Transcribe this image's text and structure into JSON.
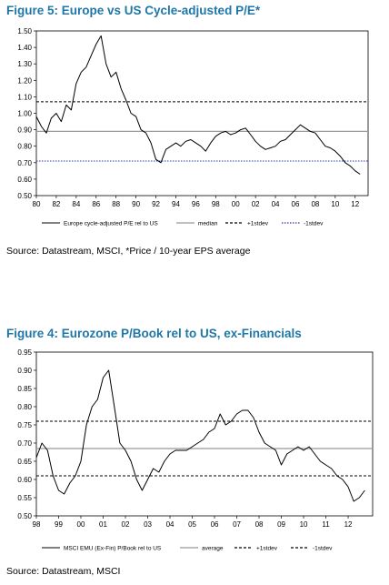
{
  "chart_data": [
    {
      "type": "line",
      "title": "Figure 5: Europe vs US Cycle-adjusted P/E*",
      "source": "Source: Datastream, MSCI, *Price / 10-year EPS average",
      "ylim": [
        0.5,
        1.5
      ],
      "yticks": [
        "0.50",
        "0.60",
        "0.70",
        "0.80",
        "0.90",
        "1.00",
        "1.10",
        "1.20",
        "1.30",
        "1.40",
        "1.50"
      ],
      "xlim": [
        1980,
        2013.3
      ],
      "xtick_values": [
        1980,
        1982,
        1984,
        1986,
        1988,
        1990,
        1992,
        1994,
        1996,
        1998,
        2000,
        2002,
        2004,
        2006,
        2008,
        2010,
        2012
      ],
      "xticks": [
        "80",
        "82",
        "84",
        "86",
        "88",
        "90",
        "92",
        "94",
        "96",
        "98",
        "00",
        "02",
        "04",
        "06",
        "08",
        "10",
        "12"
      ],
      "grid": false,
      "legend_position": "bottom",
      "series": [
        {
          "name": "Europe cycle-adjusted P/E rel to US",
          "style": "solid",
          "color": "#000000",
          "x": [
            1980,
            1980.5,
            1981,
            1981.5,
            1982,
            1982.5,
            1983,
            1983.5,
            1984,
            1984.5,
            1985,
            1985.5,
            1986,
            1986.5,
            1987,
            1987.5,
            1988,
            1988.5,
            1989,
            1989.5,
            1990,
            1990.5,
            1991,
            1991.5,
            1992,
            1992.5,
            1993,
            1993.5,
            1994,
            1994.5,
            1995,
            1995.5,
            1996,
            1996.5,
            1997,
            1997.5,
            1998,
            1998.5,
            1999,
            1999.5,
            2000,
            2000.5,
            2001,
            2001.5,
            2002,
            2002.5,
            2003,
            2003.5,
            2004,
            2004.5,
            2005,
            2005.5,
            2006,
            2006.5,
            2007,
            2007.5,
            2008,
            2008.5,
            2009,
            2009.5,
            2010,
            2010.5,
            2011,
            2011.5,
            2012,
            2012.5
          ],
          "values": [
            0.98,
            0.92,
            0.88,
            0.97,
            1.0,
            0.95,
            1.05,
            1.02,
            1.18,
            1.25,
            1.28,
            1.35,
            1.42,
            1.47,
            1.3,
            1.22,
            1.25,
            1.15,
            1.08,
            1.0,
            0.98,
            0.9,
            0.88,
            0.82,
            0.72,
            0.7,
            0.78,
            0.8,
            0.82,
            0.8,
            0.83,
            0.84,
            0.82,
            0.8,
            0.77,
            0.82,
            0.86,
            0.88,
            0.89,
            0.87,
            0.88,
            0.9,
            0.91,
            0.87,
            0.83,
            0.8,
            0.78,
            0.79,
            0.8,
            0.83,
            0.84,
            0.87,
            0.9,
            0.93,
            0.91,
            0.89,
            0.88,
            0.84,
            0.8,
            0.79,
            0.77,
            0.74,
            0.7,
            0.68,
            0.65,
            0.63
          ]
        },
        {
          "name": "median",
          "style": "solid",
          "color": "#999999",
          "values": [
            0.89
          ]
        },
        {
          "name": "+1stdev",
          "style": "dashed",
          "color": "#000000",
          "values": [
            1.07
          ]
        },
        {
          "name": "-1stdev",
          "style": "dotted",
          "color": "#2c3e9e",
          "values": [
            0.71
          ]
        }
      ]
    },
    {
      "type": "line",
      "title": "Figure 4: Eurozone P/Book rel to US, ex-Financials",
      "source": "Source: Datastream, MSCI",
      "ylim": [
        0.5,
        0.95
      ],
      "yticks": [
        "0.50",
        "0.55",
        "0.60",
        "0.65",
        "0.70",
        "0.75",
        "0.80",
        "0.85",
        "0.90",
        "0.95"
      ],
      "xlim": [
        1998,
        2013.1
      ],
      "xtick_values": [
        1998,
        1999,
        2000,
        2001,
        2002,
        2003,
        2004,
        2005,
        2006,
        2007,
        2008,
        2009,
        2010,
        2011,
        2012
      ],
      "xticks": [
        "98",
        "99",
        "00",
        "01",
        "02",
        "03",
        "04",
        "05",
        "06",
        "07",
        "08",
        "09",
        "10",
        "11",
        "12"
      ],
      "grid": false,
      "legend_position": "bottom",
      "series": [
        {
          "name": "MSCI EMU (Ex-Fin) P/Book rel to US",
          "style": "solid",
          "color": "#000000",
          "x": [
            1998,
            1998.25,
            1998.5,
            1998.75,
            1999,
            1999.25,
            1999.5,
            1999.75,
            2000,
            2000.25,
            2000.5,
            2000.75,
            2001,
            2001.25,
            2001.5,
            2001.75,
            2002,
            2002.25,
            2002.5,
            2002.75,
            2003,
            2003.25,
            2003.5,
            2003.75,
            2004,
            2004.25,
            2004.5,
            2004.75,
            2005,
            2005.25,
            2005.5,
            2005.75,
            2006,
            2006.25,
            2006.5,
            2006.75,
            2007,
            2007.25,
            2007.5,
            2007.75,
            2008,
            2008.25,
            2008.5,
            2008.75,
            2009,
            2009.25,
            2009.5,
            2009.75,
            2010,
            2010.25,
            2010.5,
            2010.75,
            2011,
            2011.25,
            2011.5,
            2011.75,
            2012,
            2012.25,
            2012.5,
            2012.75
          ],
          "values": [
            0.66,
            0.7,
            0.68,
            0.61,
            0.57,
            0.56,
            0.59,
            0.61,
            0.65,
            0.75,
            0.8,
            0.82,
            0.88,
            0.9,
            0.8,
            0.7,
            0.68,
            0.65,
            0.6,
            0.57,
            0.6,
            0.63,
            0.62,
            0.65,
            0.67,
            0.68,
            0.68,
            0.68,
            0.69,
            0.7,
            0.71,
            0.73,
            0.74,
            0.78,
            0.75,
            0.76,
            0.78,
            0.79,
            0.79,
            0.77,
            0.73,
            0.7,
            0.69,
            0.68,
            0.64,
            0.67,
            0.68,
            0.69,
            0.68,
            0.69,
            0.67,
            0.65,
            0.64,
            0.63,
            0.61,
            0.6,
            0.58,
            0.54,
            0.55,
            0.57
          ]
        },
        {
          "name": "average",
          "style": "solid",
          "color": "#999999",
          "values": [
            0.685
          ]
        },
        {
          "name": "+1stdev",
          "style": "dashed",
          "color": "#000000",
          "values": [
            0.76
          ]
        },
        {
          "name": "-1stdev",
          "style": "dashed",
          "color": "#000000",
          "values": [
            0.61
          ]
        }
      ]
    }
  ]
}
